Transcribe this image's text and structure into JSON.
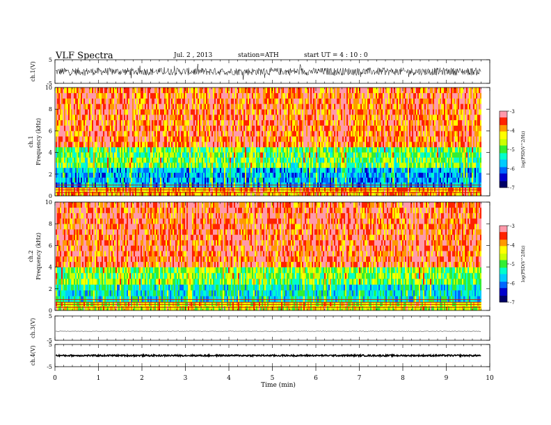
{
  "header": {
    "title": "VLF  Spectra",
    "date": "Jul.  2  , 2013",
    "station": "station=ATH",
    "start": "start  UT  =   4  : 10 : 0"
  },
  "chart_data": [
    {
      "type": "line",
      "name": "ch1-waveform",
      "ylabel": "ch.1(V)",
      "ylim": [
        -5,
        5
      ],
      "yticks": [
        "5",
        "-5"
      ],
      "xlim": [
        0,
        10
      ],
      "x_end": 9.8,
      "amplitude_typical": 1.6,
      "color": "#000000"
    },
    {
      "type": "heatmap",
      "name": "ch1-spectrogram",
      "ylabel_channel": "ch.1",
      "ylabel": "Frequency  (kHz)",
      "ylim": [
        0,
        10
      ],
      "yticks": [
        "0",
        "2",
        "4",
        "6",
        "8",
        "10"
      ],
      "xlim": [
        0,
        10
      ],
      "x_end": 9.8,
      "colorbar": {
        "label": "log(PSD(V^2/Hz)",
        "ticks": [
          "-3",
          "-4",
          "-5",
          "-6",
          "-7"
        ],
        "range": [
          -7,
          -3
        ]
      },
      "bands": [
        {
          "f_from": 0,
          "f_to": 0.8,
          "level": -4.0
        },
        {
          "f_from": 0.8,
          "f_to": 2.6,
          "level": -5.8
        },
        {
          "f_from": 2.6,
          "f_to": 4.5,
          "level": -5.0
        },
        {
          "f_from": 4.5,
          "f_to": 10,
          "level": -3.7
        }
      ]
    },
    {
      "type": "heatmap",
      "name": "ch2-spectrogram",
      "ylabel_channel": "ch.2",
      "ylabel": "Frequency  (kHz)",
      "ylim": [
        0,
        10
      ],
      "yticks": [
        "0",
        "2",
        "4",
        "6",
        "8",
        "10"
      ],
      "xlim": [
        0,
        10
      ],
      "x_end": 9.8,
      "colorbar": {
        "label": "log(PSD(V^2/Hz)",
        "ticks": [
          "-3",
          "-4",
          "-5",
          "-6",
          "-7"
        ],
        "range": [
          -7,
          -3
        ]
      },
      "bands": [
        {
          "f_from": 0,
          "f_to": 0.8,
          "level": -4.5
        },
        {
          "f_from": 0.8,
          "f_to": 2.4,
          "level": -5.5
        },
        {
          "f_from": 2.4,
          "f_to": 4.0,
          "level": -4.9
        },
        {
          "f_from": 4.0,
          "f_to": 10,
          "level": -3.6
        }
      ]
    },
    {
      "type": "line",
      "name": "ch3-waveform",
      "ylabel": "ch.3(V)",
      "ylim": [
        -5,
        5
      ],
      "yticks": [
        "5",
        "-5"
      ],
      "xlim": [
        0,
        10
      ],
      "x_end": 9.8,
      "level": -1.3,
      "amplitude_typical": 0.1,
      "color": "#000000"
    },
    {
      "type": "line",
      "name": "ch4-waveform",
      "ylabel": "ch.4(V)",
      "ylim": [
        -5,
        5
      ],
      "yticks": [
        "5",
        "-5"
      ],
      "xlim": [
        0,
        10
      ],
      "x_end": 9.8,
      "level": 0,
      "amplitude_typical": 0.35,
      "color": "#000000"
    }
  ],
  "x_axis": {
    "xlabel": "Time  (min)",
    "ticks": [
      "0",
      "1",
      "2",
      "3",
      "4",
      "5",
      "6",
      "7",
      "8",
      "9",
      "10"
    ]
  },
  "colormap": [
    "#000066",
    "#0000cc",
    "#0066ff",
    "#00ccff",
    "#00ffcc",
    "#33ee33",
    "#ccff00",
    "#ffff00",
    "#ff9900",
    "#ff2200",
    "#ff99aa"
  ]
}
